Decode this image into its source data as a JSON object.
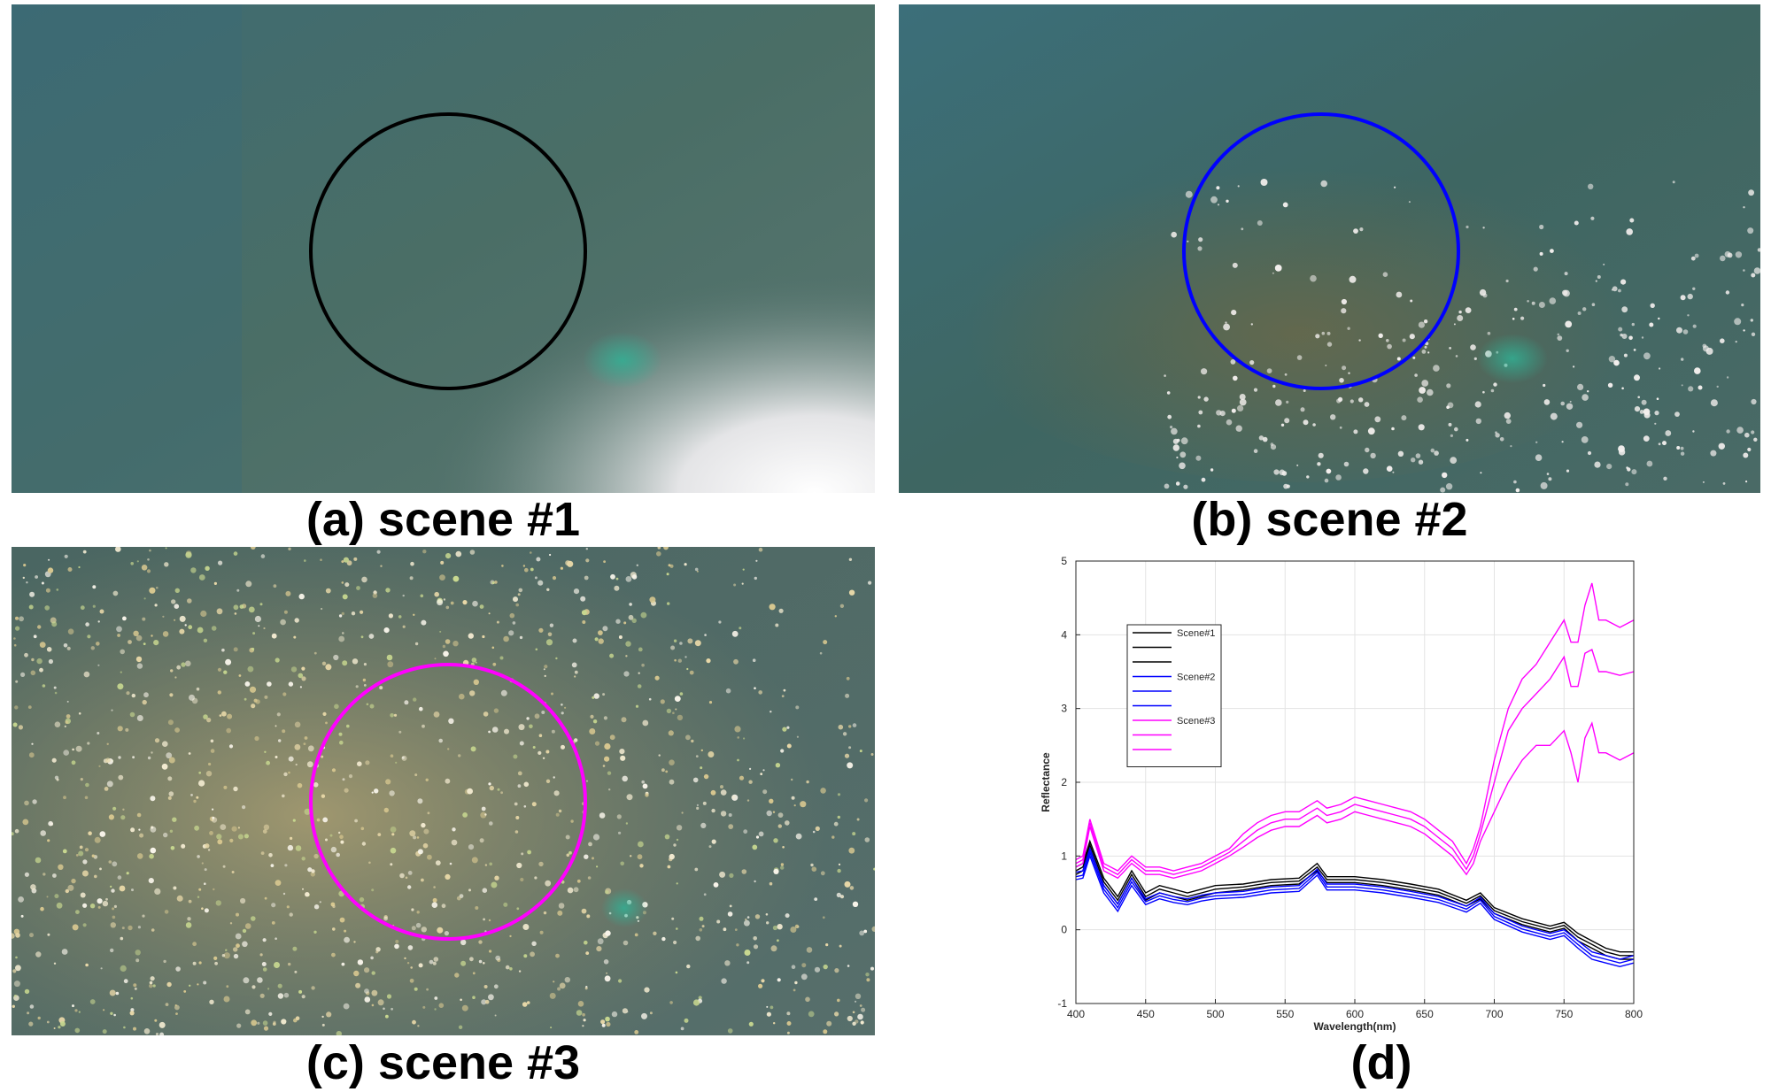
{
  "panels": [
    {
      "caption": "(a) scene #1",
      "circle_color": "#000000"
    },
    {
      "caption": "(b) scene #2",
      "circle_color": "#0000ff"
    },
    {
      "caption": "(c) scene #3",
      "circle_color": "#ff00ff"
    }
  ],
  "chart_caption": "(d)",
  "chart_data": {
    "type": "line",
    "title": "",
    "xlabel": "Wavelength(nm)",
    "ylabel": "Reflectance",
    "xlim": [
      400,
      800
    ],
    "ylim": [
      -1,
      5
    ],
    "xticks": [
      400,
      450,
      500,
      550,
      600,
      650,
      700,
      750,
      800
    ],
    "yticks": [
      -1,
      0,
      1,
      2,
      3,
      4,
      5
    ],
    "grid": true,
    "legend_position": "upper-left",
    "legend_entries": [
      "Scene#1",
      "",
      "",
      "Scene#2",
      "",
      "",
      "Scene#3",
      "",
      ""
    ],
    "series": [
      {
        "name": "Scene#1",
        "color": "#000000",
        "x": [
          400,
          405,
          410,
          420,
          430,
          440,
          450,
          460,
          470,
          480,
          490,
          500,
          520,
          540,
          560,
          573,
          580,
          600,
          620,
          640,
          660,
          680,
          690,
          700,
          720,
          740,
          750,
          760,
          770,
          780,
          790,
          800
        ],
        "y": [
          0.85,
          0.9,
          1.2,
          0.7,
          0.45,
          0.8,
          0.5,
          0.6,
          0.55,
          0.5,
          0.55,
          0.6,
          0.62,
          0.68,
          0.7,
          0.9,
          0.72,
          0.72,
          0.68,
          0.62,
          0.55,
          0.4,
          0.5,
          0.3,
          0.15,
          0.05,
          0.1,
          -0.05,
          -0.15,
          -0.25,
          -0.3,
          -0.3
        ]
      },
      {
        "name": "",
        "color": "#000000",
        "x": [
          400,
          405,
          410,
          420,
          430,
          440,
          450,
          460,
          470,
          480,
          490,
          500,
          520,
          540,
          560,
          573,
          580,
          600,
          620,
          640,
          660,
          680,
          690,
          700,
          720,
          740,
          750,
          760,
          770,
          780,
          790,
          800
        ],
        "y": [
          0.8,
          0.85,
          1.15,
          0.65,
          0.4,
          0.75,
          0.45,
          0.55,
          0.5,
          0.45,
          0.5,
          0.55,
          0.58,
          0.64,
          0.66,
          0.85,
          0.68,
          0.68,
          0.64,
          0.58,
          0.51,
          0.36,
          0.46,
          0.26,
          0.11,
          0.01,
          0.06,
          -0.1,
          -0.2,
          -0.3,
          -0.35,
          -0.35
        ]
      },
      {
        "name": "",
        "color": "#000000",
        "x": [
          400,
          405,
          410,
          420,
          430,
          440,
          450,
          460,
          470,
          480,
          490,
          500,
          520,
          540,
          560,
          573,
          580,
          600,
          620,
          640,
          660,
          680,
          690,
          700,
          720,
          740,
          750,
          760,
          770,
          780,
          790,
          800
        ],
        "y": [
          0.75,
          0.8,
          1.1,
          0.6,
          0.35,
          0.7,
          0.4,
          0.5,
          0.45,
          0.4,
          0.45,
          0.5,
          0.54,
          0.6,
          0.62,
          0.8,
          0.64,
          0.64,
          0.6,
          0.54,
          0.47,
          0.32,
          0.42,
          0.22,
          0.07,
          -0.03,
          0.02,
          -0.15,
          -0.25,
          -0.35,
          -0.4,
          -0.4
        ]
      },
      {
        "name": "Scene#2",
        "color": "#0000ff",
        "x": [
          400,
          405,
          410,
          420,
          430,
          440,
          450,
          460,
          470,
          480,
          490,
          500,
          520,
          540,
          560,
          573,
          580,
          600,
          620,
          640,
          660,
          680,
          690,
          700,
          720,
          740,
          750,
          760,
          770,
          780,
          790,
          800
        ],
        "y": [
          0.78,
          0.8,
          1.1,
          0.6,
          0.35,
          0.7,
          0.42,
          0.5,
          0.45,
          0.42,
          0.47,
          0.5,
          0.52,
          0.58,
          0.6,
          0.82,
          0.62,
          0.62,
          0.58,
          0.52,
          0.45,
          0.32,
          0.44,
          0.22,
          0.05,
          -0.05,
          0.0,
          -0.15,
          -0.3,
          -0.35,
          -0.4,
          -0.35
        ]
      },
      {
        "name": "",
        "color": "#0000ff",
        "x": [
          400,
          405,
          410,
          420,
          430,
          440,
          450,
          460,
          470,
          480,
          490,
          500,
          520,
          540,
          560,
          573,
          580,
          600,
          620,
          640,
          660,
          680,
          690,
          700,
          720,
          740,
          750,
          760,
          770,
          780,
          790,
          800
        ],
        "y": [
          0.72,
          0.74,
          1.05,
          0.55,
          0.3,
          0.65,
          0.38,
          0.46,
          0.41,
          0.38,
          0.43,
          0.46,
          0.48,
          0.54,
          0.56,
          0.78,
          0.58,
          0.58,
          0.54,
          0.48,
          0.41,
          0.28,
          0.4,
          0.18,
          0.01,
          -0.09,
          -0.04,
          -0.2,
          -0.35,
          -0.4,
          -0.45,
          -0.4
        ]
      },
      {
        "name": "",
        "color": "#0000ff",
        "x": [
          400,
          405,
          410,
          420,
          430,
          440,
          450,
          460,
          470,
          480,
          490,
          500,
          520,
          540,
          560,
          573,
          580,
          600,
          620,
          640,
          660,
          680,
          690,
          700,
          720,
          740,
          750,
          760,
          770,
          780,
          790,
          800
        ],
        "y": [
          0.68,
          0.7,
          1.0,
          0.5,
          0.25,
          0.6,
          0.34,
          0.42,
          0.37,
          0.34,
          0.39,
          0.42,
          0.44,
          0.5,
          0.52,
          0.74,
          0.54,
          0.54,
          0.5,
          0.44,
          0.37,
          0.24,
          0.36,
          0.14,
          -0.03,
          -0.13,
          -0.08,
          -0.25,
          -0.4,
          -0.45,
          -0.5,
          -0.45
        ]
      },
      {
        "name": "Scene#3",
        "color": "#ff00ff",
        "x": [
          400,
          405,
          410,
          420,
          430,
          440,
          450,
          460,
          470,
          480,
          490,
          500,
          510,
          520,
          530,
          540,
          550,
          560,
          573,
          580,
          590,
          600,
          610,
          620,
          630,
          640,
          650,
          660,
          670,
          680,
          685,
          690,
          700,
          710,
          720,
          730,
          740,
          750,
          755,
          760,
          765,
          770,
          775,
          780,
          790,
          800
        ],
        "y": [
          0.95,
          1.0,
          1.5,
          0.9,
          0.8,
          1.0,
          0.85,
          0.85,
          0.8,
          0.85,
          0.9,
          1.0,
          1.1,
          1.3,
          1.45,
          1.55,
          1.6,
          1.6,
          1.75,
          1.65,
          1.7,
          1.8,
          1.75,
          1.7,
          1.65,
          1.6,
          1.5,
          1.35,
          1.2,
          0.9,
          1.1,
          1.4,
          2.3,
          3.0,
          3.4,
          3.6,
          3.9,
          4.2,
          3.9,
          3.9,
          4.4,
          4.7,
          4.2,
          4.2,
          4.1,
          4.2
        ]
      },
      {
        "name": "",
        "color": "#ff00ff",
        "x": [
          400,
          405,
          410,
          420,
          430,
          440,
          450,
          460,
          470,
          480,
          490,
          500,
          510,
          520,
          530,
          540,
          550,
          560,
          573,
          580,
          590,
          600,
          610,
          620,
          630,
          640,
          650,
          660,
          670,
          680,
          685,
          690,
          700,
          710,
          720,
          730,
          740,
          750,
          755,
          760,
          765,
          770,
          775,
          780,
          790,
          800
        ],
        "y": [
          0.9,
          0.95,
          1.45,
          0.85,
          0.75,
          0.95,
          0.8,
          0.8,
          0.75,
          0.8,
          0.85,
          0.95,
          1.05,
          1.2,
          1.35,
          1.45,
          1.5,
          1.5,
          1.65,
          1.55,
          1.6,
          1.7,
          1.65,
          1.6,
          1.55,
          1.5,
          1.4,
          1.25,
          1.1,
          0.82,
          1.0,
          1.3,
          2.0,
          2.7,
          3.0,
          3.2,
          3.4,
          3.7,
          3.3,
          3.3,
          3.75,
          3.8,
          3.5,
          3.5,
          3.45,
          3.5
        ]
      },
      {
        "name": "",
        "color": "#ff00ff",
        "x": [
          400,
          405,
          410,
          420,
          430,
          440,
          450,
          460,
          470,
          480,
          490,
          500,
          510,
          520,
          530,
          540,
          550,
          560,
          573,
          580,
          590,
          600,
          610,
          620,
          630,
          640,
          650,
          660,
          670,
          680,
          685,
          690,
          700,
          710,
          720,
          730,
          740,
          750,
          755,
          760,
          765,
          770,
          775,
          780,
          790,
          800
        ],
        "y": [
          0.85,
          0.9,
          1.4,
          0.8,
          0.7,
          0.9,
          0.75,
          0.75,
          0.7,
          0.75,
          0.8,
          0.9,
          1.0,
          1.12,
          1.25,
          1.35,
          1.4,
          1.4,
          1.55,
          1.45,
          1.5,
          1.6,
          1.55,
          1.5,
          1.45,
          1.4,
          1.3,
          1.15,
          1.0,
          0.75,
          0.9,
          1.2,
          1.6,
          2.0,
          2.3,
          2.5,
          2.5,
          2.7,
          2.4,
          2.0,
          2.6,
          2.8,
          2.4,
          2.4,
          2.3,
          2.4
        ]
      }
    ]
  }
}
